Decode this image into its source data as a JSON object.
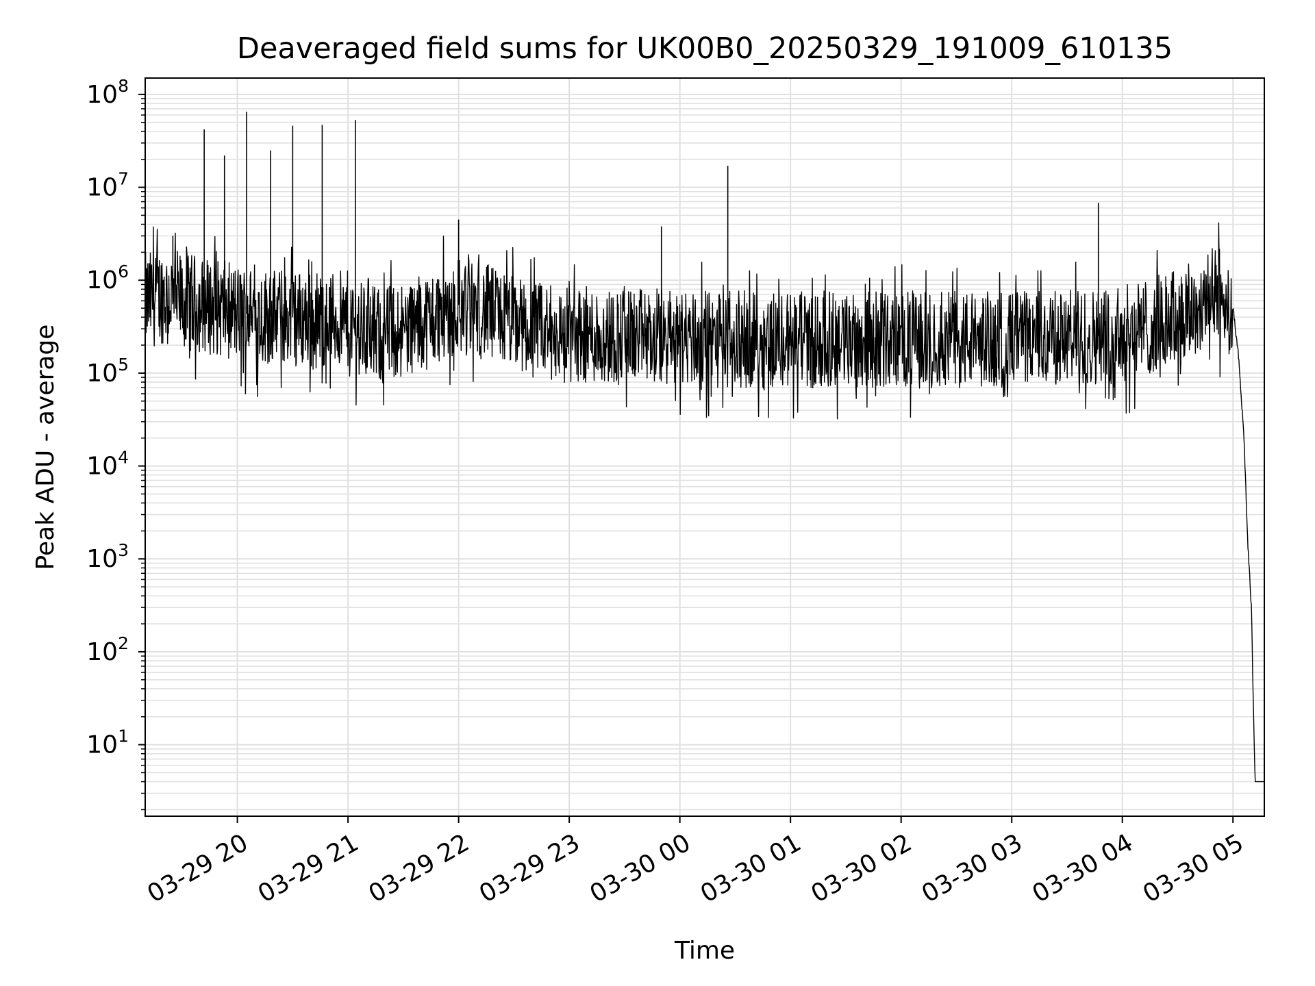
{
  "chart_data": {
    "type": "line",
    "title": "Deaveraged field sums for UK00B0_20250329_191009_610135",
    "xlabel": "Time",
    "ylabel": "Peak ADU - average",
    "y_scale": "log",
    "grid": true,
    "legend": "none",
    "x_range": [
      "2025-03-29 19:10",
      "2025-03-30 05:17"
    ],
    "ylim": [
      1.7,
      150000000
    ],
    "x_ticks": [
      {
        "t": "2025-03-29 20:00",
        "label": "03-29 20"
      },
      {
        "t": "2025-03-29 21:00",
        "label": "03-29 21"
      },
      {
        "t": "2025-03-29 22:00",
        "label": "03-29 22"
      },
      {
        "t": "2025-03-29 23:00",
        "label": "03-29 23"
      },
      {
        "t": "2025-03-30 00:00",
        "label": "03-30 00"
      },
      {
        "t": "2025-03-30 01:00",
        "label": "03-30 01"
      },
      {
        "t": "2025-03-30 02:00",
        "label": "03-30 02"
      },
      {
        "t": "2025-03-30 03:00",
        "label": "03-30 03"
      },
      {
        "t": "2025-03-30 04:00",
        "label": "03-30 04"
      },
      {
        "t": "2025-03-30 05:00",
        "label": "03-30 05"
      }
    ],
    "y_ticks": [
      {
        "value": 10,
        "base": "10",
        "exp": "1"
      },
      {
        "value": 100,
        "base": "10",
        "exp": "2"
      },
      {
        "value": 1000,
        "base": "10",
        "exp": "3"
      },
      {
        "value": 10000,
        "base": "10",
        "exp": "4"
      },
      {
        "value": 100000,
        "base": "10",
        "exp": "5"
      },
      {
        "value": 1000000,
        "base": "10",
        "exp": "6"
      },
      {
        "value": 10000000,
        "base": "10",
        "exp": "7"
      },
      {
        "value": 100000000,
        "base": "10",
        "exp": "8"
      }
    ],
    "series": [
      {
        "color": "#000000",
        "x": [
          "2025-03-29 19:10",
          "2025-03-29 19:20",
          "2025-03-29 19:30",
          "2025-03-29 19:40",
          "2025-03-29 19:50",
          "2025-03-29 20:00",
          "2025-03-29 20:10",
          "2025-03-29 20:20",
          "2025-03-29 20:30",
          "2025-03-29 20:40",
          "2025-03-29 20:50",
          "2025-03-29 21:00",
          "2025-03-29 21:15",
          "2025-03-29 21:30",
          "2025-03-29 21:45",
          "2025-03-29 22:00",
          "2025-03-29 22:15",
          "2025-03-29 22:30",
          "2025-03-29 22:45",
          "2025-03-29 23:00",
          "2025-03-29 23:30",
          "2025-03-30 00:00",
          "2025-03-30 00:30",
          "2025-03-30 01:00",
          "2025-03-30 01:30",
          "2025-03-30 02:00",
          "2025-03-30 02:30",
          "2025-03-30 03:00",
          "2025-03-30 03:30",
          "2025-03-30 04:00",
          "2025-03-30 04:30",
          "2025-03-30 04:50",
          "2025-03-30 05:00",
          "2025-03-30 05:03",
          "2025-03-30 05:06",
          "2025-03-30 05:08",
          "2025-03-30 05:10",
          "2025-03-30 05:11",
          "2025-03-30 05:12",
          "2025-03-30 05:17"
        ],
        "y": [
          600000,
          700000,
          600000,
          550000,
          500000,
          450000,
          420000,
          400000,
          400000,
          380000,
          370000,
          380000,
          250000,
          300000,
          380000,
          550000,
          450000,
          350000,
          280000,
          260000,
          250000,
          240000,
          230000,
          230000,
          230000,
          230000,
          230000,
          230000,
          240000,
          260000,
          400000,
          700000,
          500000,
          150000,
          20000,
          1500,
          300,
          30,
          4,
          4
        ]
      }
    ],
    "spikes": [
      {
        "t": "2025-03-29 19:25",
        "value": 3000000
      },
      {
        "t": "2025-03-29 19:42",
        "value": 42000000
      },
      {
        "t": "2025-03-29 19:53",
        "value": 22000000
      },
      {
        "t": "2025-03-29 20:05",
        "value": 65000000
      },
      {
        "t": "2025-03-29 20:18",
        "value": 25000000
      },
      {
        "t": "2025-03-29 20:30",
        "value": 46000000
      },
      {
        "t": "2025-03-29 20:46",
        "value": 47000000
      },
      {
        "t": "2025-03-29 21:04",
        "value": 53000000
      },
      {
        "t": "2025-03-29 22:00",
        "value": 4500000
      },
      {
        "t": "2025-03-29 23:50",
        "value": 3800000
      },
      {
        "t": "2025-03-30 00:26",
        "value": 17000000
      },
      {
        "t": "2025-03-30 03:47",
        "value": 6800000
      }
    ]
  }
}
